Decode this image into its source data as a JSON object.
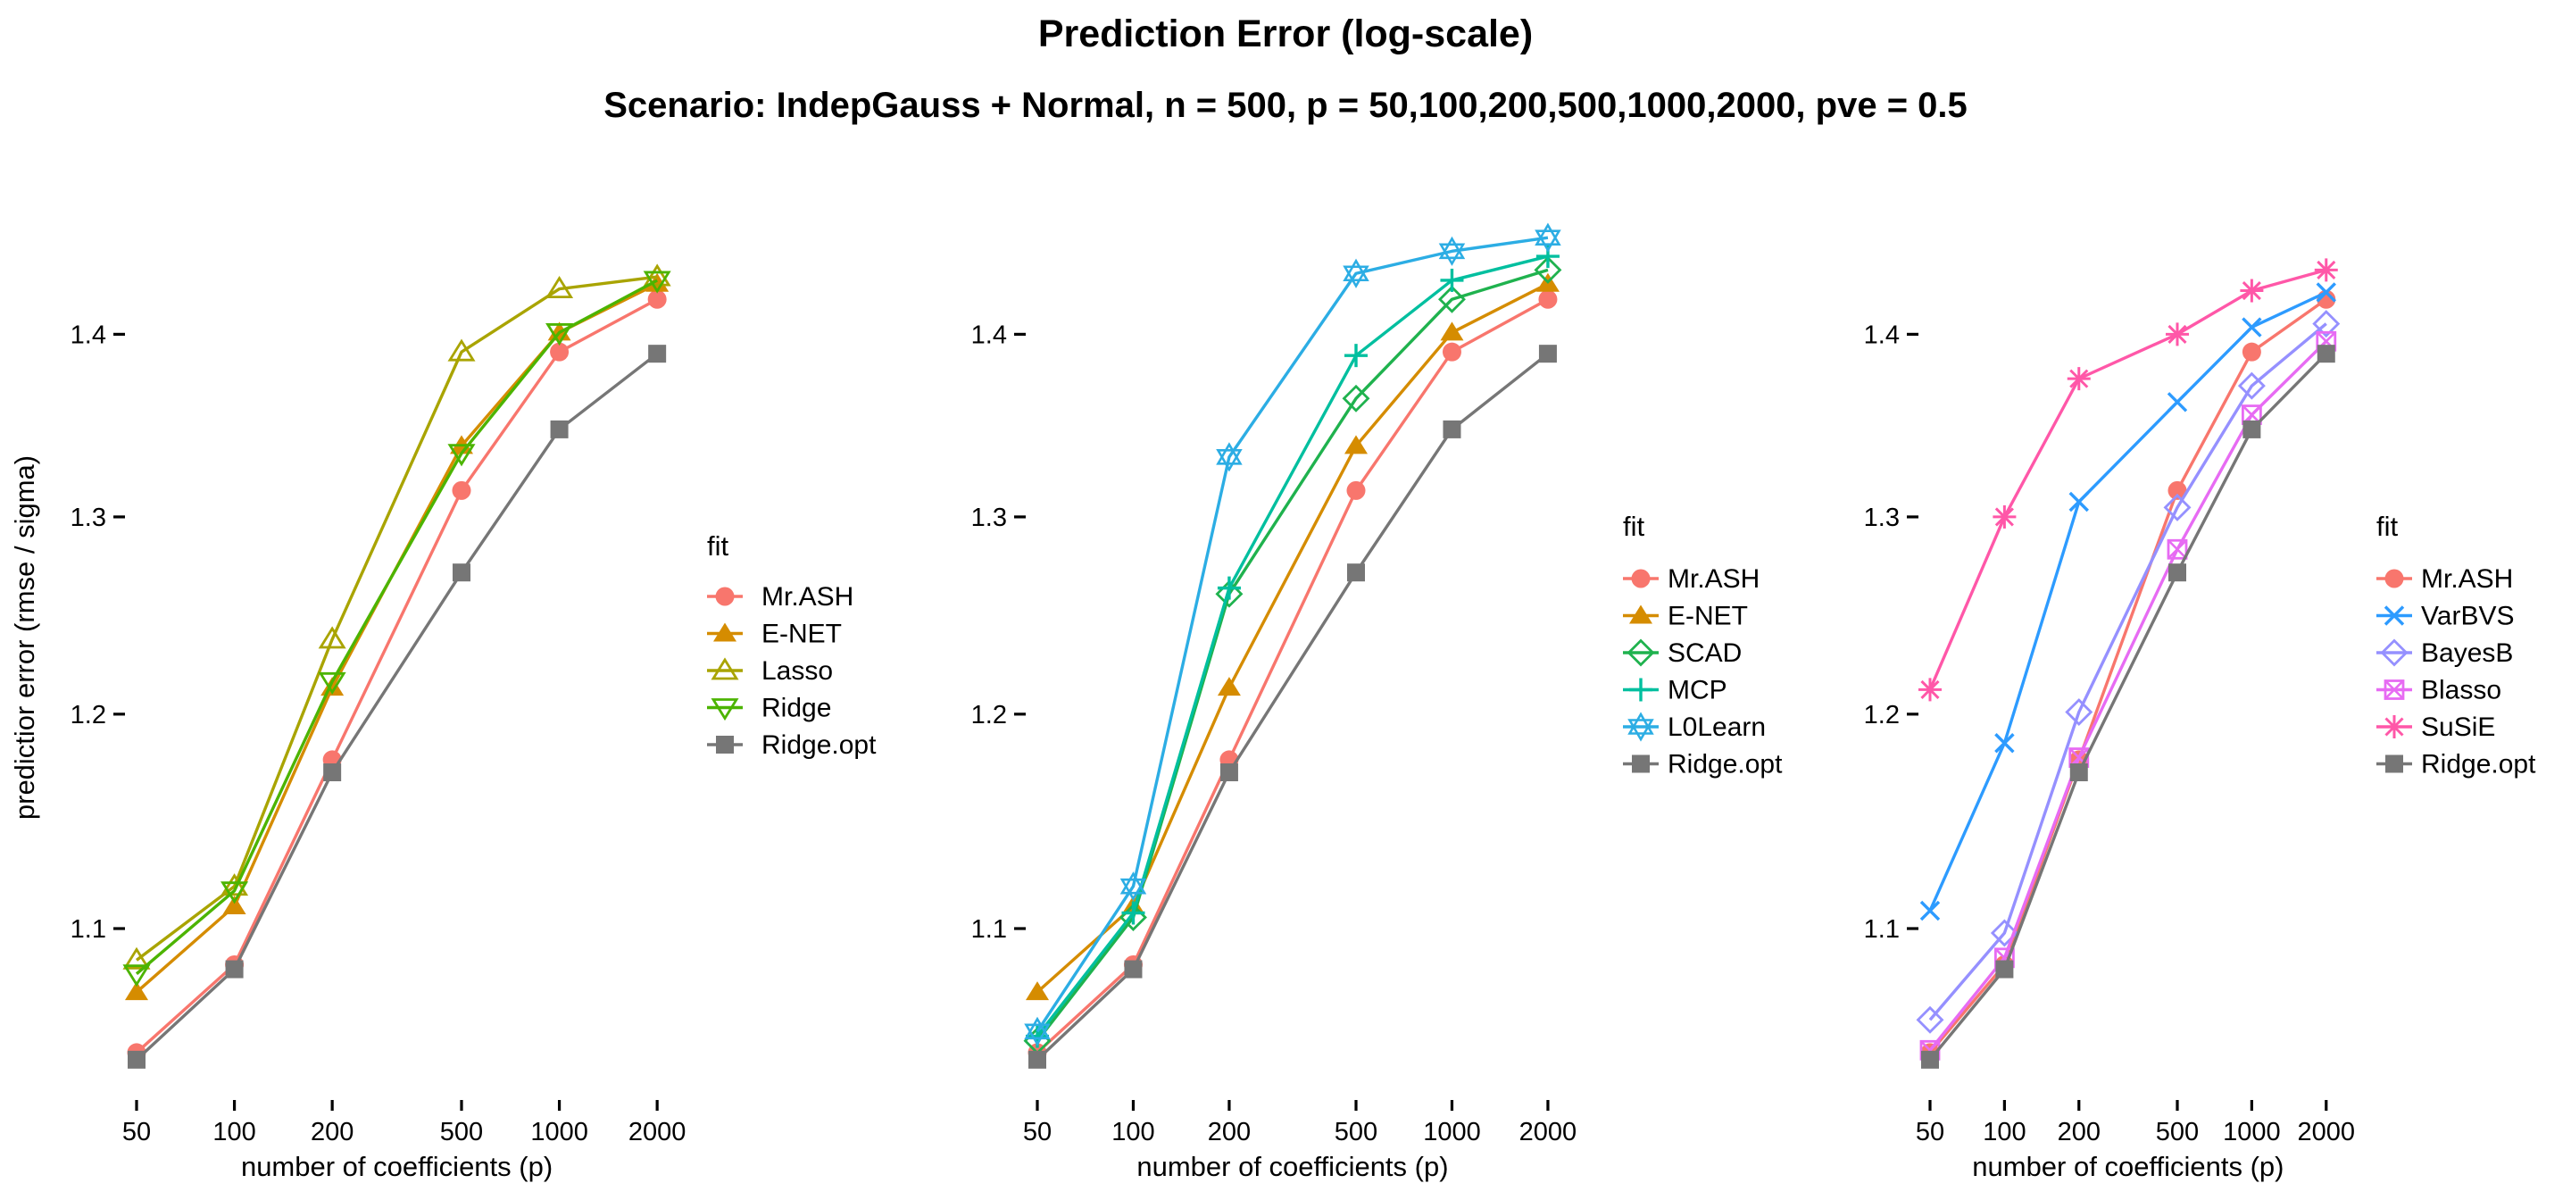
{
  "header": {
    "title": "Prediction Error (log-scale)",
    "subtitle": "Scenario: IndepGauss + Normal, n = 500, p = 50,100,200,500,1000,2000, pve = 0.5"
  },
  "axes": {
    "x_title": "number of coefficients (p)",
    "y_title": "predictior error (rmse / sigma)",
    "x_ticks": [
      50,
      100,
      200,
      500,
      1000,
      2000
    ],
    "y_ticks": [
      1.1,
      1.2,
      1.3,
      1.4
    ],
    "x_scale": "log",
    "y_scale": "log",
    "grid": "off"
  },
  "chart_data": [
    {
      "type": "line",
      "legend_title": "fit",
      "legend_position": "right",
      "x": [
        50,
        100,
        200,
        500,
        1000,
        2000
      ],
      "ylim": [
        1.025,
        1.465
      ],
      "series": [
        {
          "name": "Mr.ASH",
          "color": "#F8766D",
          "marker": "circle",
          "values": [
            1.046,
            1.084,
            1.178,
            1.314,
            1.39,
            1.42
          ]
        },
        {
          "name": "E-NET",
          "color": "#D58C00",
          "marker": "triangle-up",
          "values": [
            1.072,
            1.11,
            1.213,
            1.338,
            1.401,
            1.429
          ]
        },
        {
          "name": "Lasso",
          "color": "#A9A400",
          "marker": "triangle-up-open",
          "values": [
            1.086,
            1.119,
            1.237,
            1.39,
            1.426,
            1.433
          ]
        },
        {
          "name": "Ridge",
          "color": "#4CB400",
          "marker": "triangle-down-open",
          "values": [
            1.08,
            1.117,
            1.216,
            1.334,
            1.401,
            1.431
          ]
        },
        {
          "name": "Ridge.opt",
          "color": "#767676",
          "marker": "square",
          "values": [
            1.043,
            1.082,
            1.172,
            1.271,
            1.347,
            1.389
          ]
        }
      ]
    },
    {
      "type": "line",
      "legend_title": "fit",
      "legend_position": "right",
      "x": [
        50,
        100,
        200,
        500,
        1000,
        2000
      ],
      "ylim": [
        1.025,
        1.465
      ],
      "series": [
        {
          "name": "Mr.ASH",
          "color": "#F8766D",
          "marker": "circle",
          "values": [
            1.046,
            1.084,
            1.178,
            1.314,
            1.39,
            1.42
          ]
        },
        {
          "name": "E-NET",
          "color": "#D58C00",
          "marker": "triangle-up",
          "values": [
            1.072,
            1.11,
            1.213,
            1.338,
            1.401,
            1.429
          ]
        },
        {
          "name": "SCAD",
          "color": "#1FB24E",
          "marker": "diamond-open",
          "values": [
            1.051,
            1.105,
            1.26,
            1.364,
            1.42,
            1.437
          ]
        },
        {
          "name": "MCP",
          "color": "#00BF9F",
          "marker": "plus",
          "values": [
            1.053,
            1.107,
            1.263,
            1.388,
            1.431,
            1.445
          ]
        },
        {
          "name": "L0Learn",
          "color": "#2CADE4",
          "marker": "star6-open",
          "values": [
            1.055,
            1.119,
            1.332,
            1.435,
            1.448,
            1.456
          ]
        },
        {
          "name": "Ridge.opt",
          "color": "#767676",
          "marker": "square",
          "values": [
            1.043,
            1.082,
            1.172,
            1.271,
            1.347,
            1.389
          ]
        }
      ]
    },
    {
      "type": "line",
      "legend_title": "fit",
      "legend_position": "right",
      "x": [
        50,
        100,
        200,
        500,
        1000,
        2000
      ],
      "ylim": [
        1.025,
        1.465
      ],
      "series": [
        {
          "name": "Mr.ASH",
          "color": "#F8766D",
          "marker": "circle",
          "values": [
            1.046,
            1.084,
            1.178,
            1.314,
            1.39,
            1.42
          ]
        },
        {
          "name": "VarBVS",
          "color": "#2D9BFF",
          "marker": "x",
          "values": [
            1.108,
            1.186,
            1.308,
            1.362,
            1.404,
            1.424
          ]
        },
        {
          "name": "BayesB",
          "color": "#9590FF",
          "marker": "diamond-open",
          "values": [
            1.06,
            1.098,
            1.201,
            1.305,
            1.371,
            1.406
          ]
        },
        {
          "name": "Blasso",
          "color": "#E76BF3",
          "marker": "square-x-open",
          "values": [
            1.047,
            1.087,
            1.179,
            1.283,
            1.355,
            1.396
          ]
        },
        {
          "name": "SuSiE",
          "color": "#FF57A8",
          "marker": "asterisk8",
          "values": [
            1.212,
            1.3,
            1.375,
            1.4,
            1.425,
            1.437
          ]
        },
        {
          "name": "Ridge.opt",
          "color": "#767676",
          "marker": "square",
          "values": [
            1.043,
            1.082,
            1.172,
            1.271,
            1.347,
            1.389
          ]
        }
      ]
    }
  ]
}
